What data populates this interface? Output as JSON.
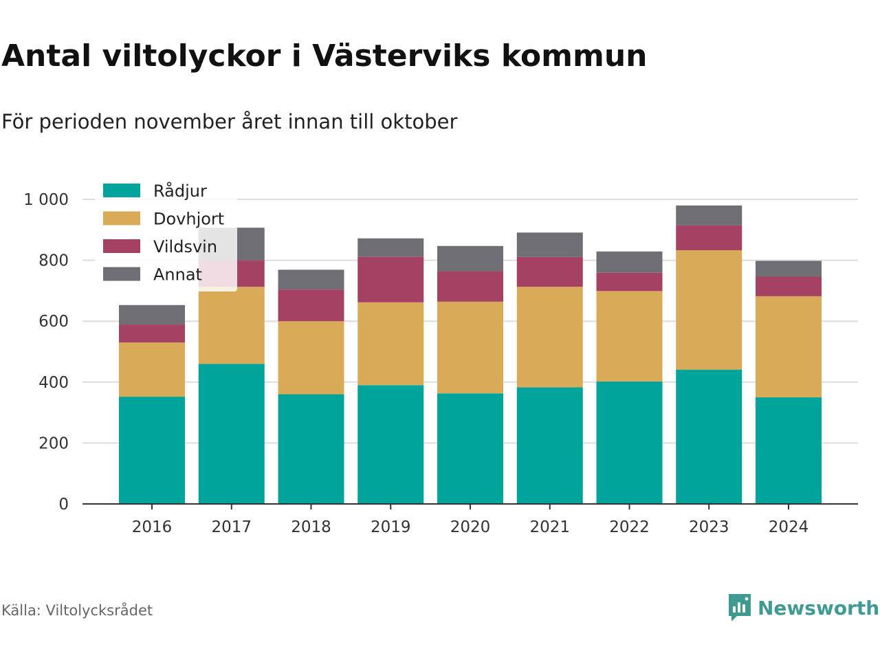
{
  "title": "Antal viltolyckor i Västerviks kommun",
  "subtitle": "För perioden november året innan till oktober",
  "source": "Källa: Viltolycksrådet",
  "brand": "Newsworthy",
  "brand_color": "#3f9b92",
  "chart_data": {
    "type": "bar",
    "stacked": true,
    "categories": [
      "2016",
      "2017",
      "2018",
      "2019",
      "2020",
      "2021",
      "2022",
      "2023",
      "2024"
    ],
    "series": [
      {
        "name": "Rådjur",
        "color": "#00a49a",
        "values": [
          352,
          460,
          360,
          390,
          363,
          383,
          402,
          441,
          350
        ]
      },
      {
        "name": "Dovhjort",
        "color": "#d9aa57",
        "values": [
          178,
          253,
          240,
          272,
          301,
          330,
          297,
          392,
          332
        ]
      },
      {
        "name": "Vildsvin",
        "color": "#a54263",
        "values": [
          59,
          87,
          104,
          150,
          100,
          98,
          60,
          82,
          64
        ]
      },
      {
        "name": "Annat",
        "color": "#6f6e74",
        "values": [
          64,
          107,
          65,
          60,
          83,
          80,
          70,
          65,
          52
        ]
      }
    ],
    "ylim": [
      0,
      1000
    ],
    "yticks": [
      0,
      200,
      400,
      600,
      800,
      1000
    ],
    "ytick_labels": [
      "0",
      "200",
      "400",
      "600",
      "800",
      "1 000"
    ],
    "xlabel": "",
    "ylabel": "",
    "grid": true,
    "legend_position": "top-left"
  }
}
